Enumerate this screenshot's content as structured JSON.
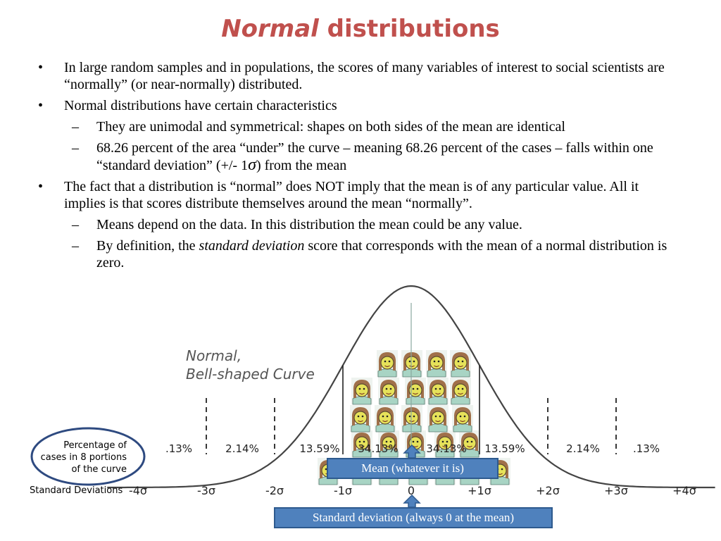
{
  "title": {
    "italic": "Normal",
    "rest": "distributions"
  },
  "bullets": {
    "b1": "In large random samples and in populations, the scores of many variables of interest to social scientists are “normally” (or near-normally) distributed.",
    "b2": "Normal distributions have certain characteristics",
    "b2a": "They are unimodal and symmetrical: shapes on both sides of the mean are identical",
    "b2b_pre": "68.26 percent of the area “under” the curve – meaning 68.26 percent of the cases – falls within one “standard deviation” (+/- 1",
    "b2b_sigma": "σ",
    "b2b_post": ") from the mean",
    "b3": "The fact that a distribution is “normal” does NOT imply that the mean is of any particular value. All it implies is that scores distribute themselves around the mean “normally”.",
    "b3a": "Means depend on the data. In this distribution the mean could be any value.",
    "b3b_pre": "By definition, the ",
    "b3b_italic": "standard deviation",
    "b3b_post": " score that corresponds with the mean of a normal distribution is zero."
  },
  "diagram": {
    "curve_title_1": "Normal,",
    "curve_title_2": "Bell-shaped Curve",
    "percent_labels": [
      ".13%",
      "2.14%",
      "13.59%",
      "34.13%",
      "34.13%",
      "13.59%",
      "2.14%",
      ".13%"
    ],
    "sd_axis_label": "Standard Deviations",
    "sd_ticks": [
      "-4σ",
      "-3σ",
      "-2σ",
      "-1σ",
      "0",
      "+1σ",
      "+2σ",
      "+3σ",
      "+4σ"
    ],
    "oval_lines": [
      "Percentage of",
      "cases in 8 portions",
      "of the curve"
    ],
    "face_colors": {
      "skin": "#e6e25a",
      "hair": "#a0704a",
      "shirt": "#a8d4c4",
      "outline": "#5a4a30"
    }
  },
  "callouts": {
    "mean": "Mean (whatever it is)",
    "sd": "Standard deviation (always 0 at the mean)",
    "fill": "#4f81bd"
  }
}
